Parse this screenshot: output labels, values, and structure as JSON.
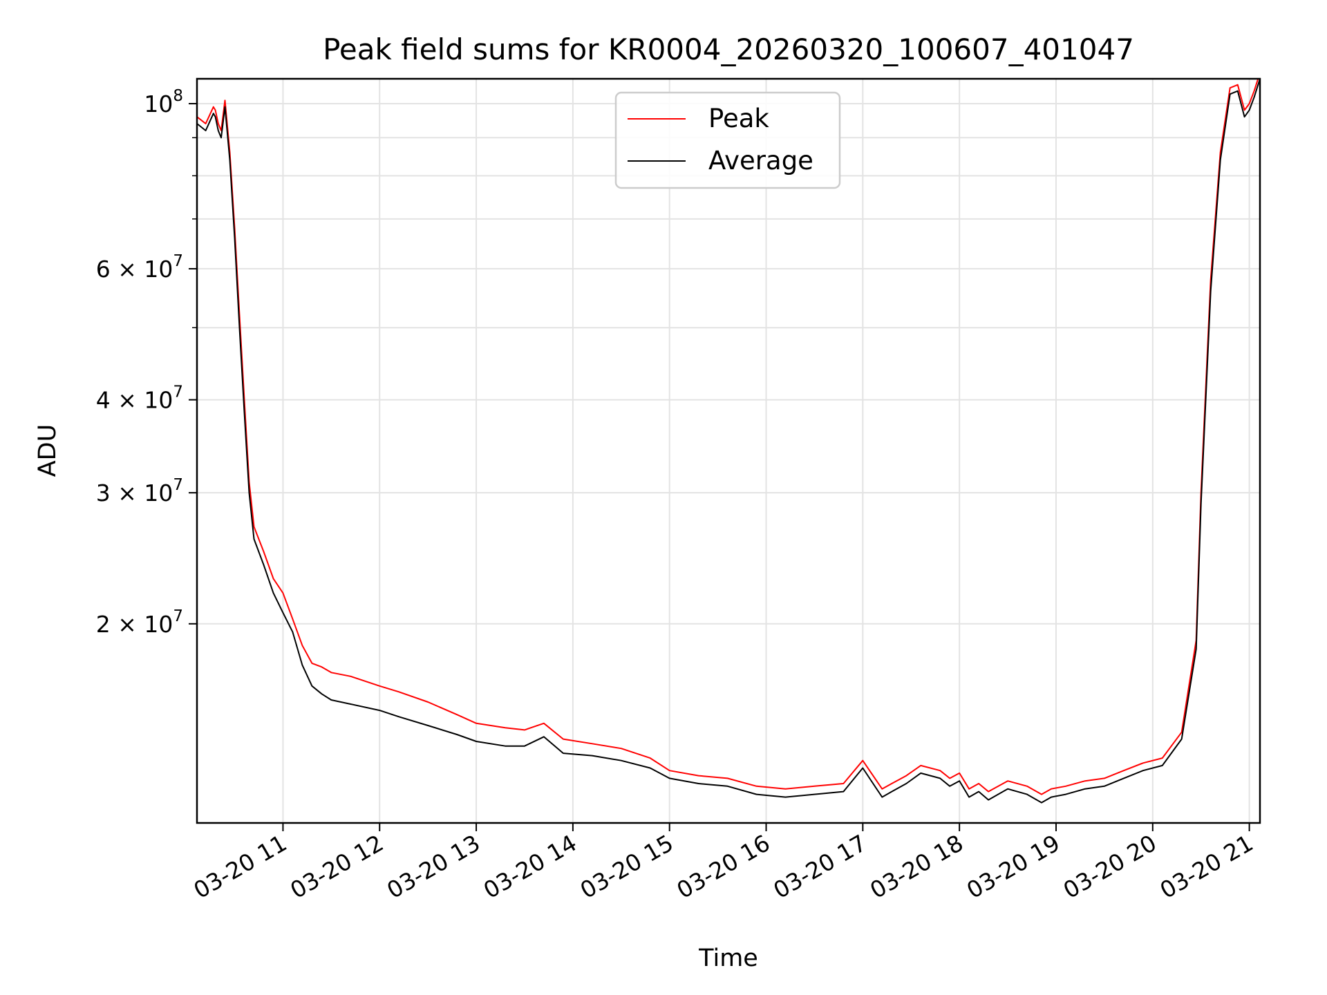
{
  "chart_data": {
    "type": "line",
    "title": "Peak field sums for KR0004_20260320_100607_401047",
    "xlabel": "Time",
    "ylabel": "ADU",
    "yscale": "log",
    "grid": true,
    "legend_position": "upper center",
    "x_unit": "hours since 03-20 00:00",
    "xlim": [
      10.11,
      21.11
    ],
    "ylim": [
      10800000,
      108000000
    ],
    "x_tick_values": [
      11,
      12,
      13,
      14,
      15,
      16,
      17,
      18,
      19,
      20,
      21
    ],
    "x_tick_labels": [
      "03-20 11",
      "03-20 12",
      "03-20 13",
      "03-20 14",
      "03-20 15",
      "03-20 16",
      "03-20 17",
      "03-20 18",
      "03-20 19",
      "03-20 20",
      "03-20 21"
    ],
    "y_major_ticks": [
      {
        "value": 20000000,
        "mantissa": "2",
        "exp": "7"
      },
      {
        "value": 30000000,
        "mantissa": "3",
        "exp": "7"
      },
      {
        "value": 40000000,
        "mantissa": "4",
        "exp": "7"
      },
      {
        "value": 60000000,
        "mantissa": "6",
        "exp": "7"
      },
      {
        "value": 100000000,
        "mantissa": "",
        "exp": "8"
      }
    ],
    "y_minor_grid": [
      50000000,
      70000000,
      80000000,
      90000000
    ],
    "series": [
      {
        "name": "Peak",
        "color": "#ff0000",
        "x": [
          10.11,
          10.2,
          10.28,
          10.3,
          10.33,
          10.36,
          10.4,
          10.45,
          10.5,
          10.55,
          10.6,
          10.65,
          10.7,
          10.8,
          10.9,
          11.0,
          11.1,
          11.2,
          11.3,
          11.4,
          11.5,
          11.7,
          12.0,
          12.2,
          12.5,
          12.8,
          13.0,
          13.3,
          13.5,
          13.7,
          13.9,
          14.2,
          14.5,
          14.8,
          15.0,
          15.3,
          15.6,
          15.9,
          16.2,
          16.5,
          16.8,
          17.0,
          17.2,
          17.3,
          17.45,
          17.6,
          17.8,
          17.9,
          18.0,
          18.1,
          18.2,
          18.3,
          18.5,
          18.7,
          18.85,
          18.95,
          19.1,
          19.3,
          19.5,
          19.7,
          19.9,
          20.1,
          20.3,
          20.45,
          20.5,
          20.6,
          20.7,
          20.8,
          20.88,
          20.95,
          21.0,
          21.05,
          21.11
        ],
        "y": [
          96000000,
          94000000,
          99000000,
          98000000,
          94000000,
          92000000,
          101000000,
          86000000,
          68000000,
          52000000,
          40000000,
          31000000,
          27000000,
          25000000,
          23000000,
          22000000,
          20300000,
          18700000,
          17700000,
          17500000,
          17200000,
          17000000,
          16500000,
          16200000,
          15700000,
          15100000,
          14700000,
          14500000,
          14400000,
          14700000,
          14000000,
          13800000,
          13600000,
          13200000,
          12700000,
          12500000,
          12400000,
          12100000,
          12000000,
          12100000,
          12200000,
          13100000,
          12000000,
          12200000,
          12500000,
          12900000,
          12700000,
          12400000,
          12600000,
          12000000,
          12200000,
          11900000,
          12300000,
          12100000,
          11800000,
          12000000,
          12100000,
          12300000,
          12400000,
          12700000,
          13000000,
          13200000,
          14300000,
          19000000,
          30000000,
          58000000,
          86000000,
          105000000,
          106000000,
          98000000,
          100000000,
          104000000,
          110000000
        ]
      },
      {
        "name": "Average",
        "color": "#000000",
        "x": [
          10.11,
          10.2,
          10.28,
          10.3,
          10.33,
          10.36,
          10.4,
          10.45,
          10.5,
          10.55,
          10.6,
          10.65,
          10.7,
          10.8,
          10.9,
          11.0,
          11.1,
          11.2,
          11.3,
          11.4,
          11.5,
          11.7,
          12.0,
          12.2,
          12.5,
          12.8,
          13.0,
          13.3,
          13.5,
          13.7,
          13.9,
          14.2,
          14.5,
          14.8,
          15.0,
          15.3,
          15.6,
          15.9,
          16.2,
          16.5,
          16.8,
          17.0,
          17.2,
          17.3,
          17.45,
          17.6,
          17.8,
          17.9,
          18.0,
          18.1,
          18.2,
          18.3,
          18.5,
          18.7,
          18.85,
          18.95,
          19.1,
          19.3,
          19.5,
          19.7,
          19.9,
          20.1,
          20.3,
          20.45,
          20.5,
          20.6,
          20.7,
          20.8,
          20.88,
          20.95,
          21.0,
          21.05,
          21.11
        ],
        "y": [
          94000000,
          92000000,
          97000000,
          96000000,
          92000000,
          90000000,
          99000000,
          84000000,
          66000000,
          50000000,
          38500000,
          30000000,
          26000000,
          24000000,
          22000000,
          20700000,
          19500000,
          17600000,
          16500000,
          16100000,
          15800000,
          15600000,
          15300000,
          15000000,
          14600000,
          14200000,
          13900000,
          13700000,
          13700000,
          14100000,
          13400000,
          13300000,
          13100000,
          12800000,
          12400000,
          12200000,
          12100000,
          11800000,
          11700000,
          11800000,
          11900000,
          12800000,
          11700000,
          11900000,
          12200000,
          12600000,
          12400000,
          12100000,
          12300000,
          11700000,
          11900000,
          11600000,
          12000000,
          11800000,
          11500000,
          11700000,
          11800000,
          12000000,
          12100000,
          12400000,
          12700000,
          12900000,
          14000000,
          18500000,
          29000000,
          56000000,
          84000000,
          103000000,
          104000000,
          96000000,
          98000000,
          102000000,
          108000000
        ]
      }
    ]
  }
}
